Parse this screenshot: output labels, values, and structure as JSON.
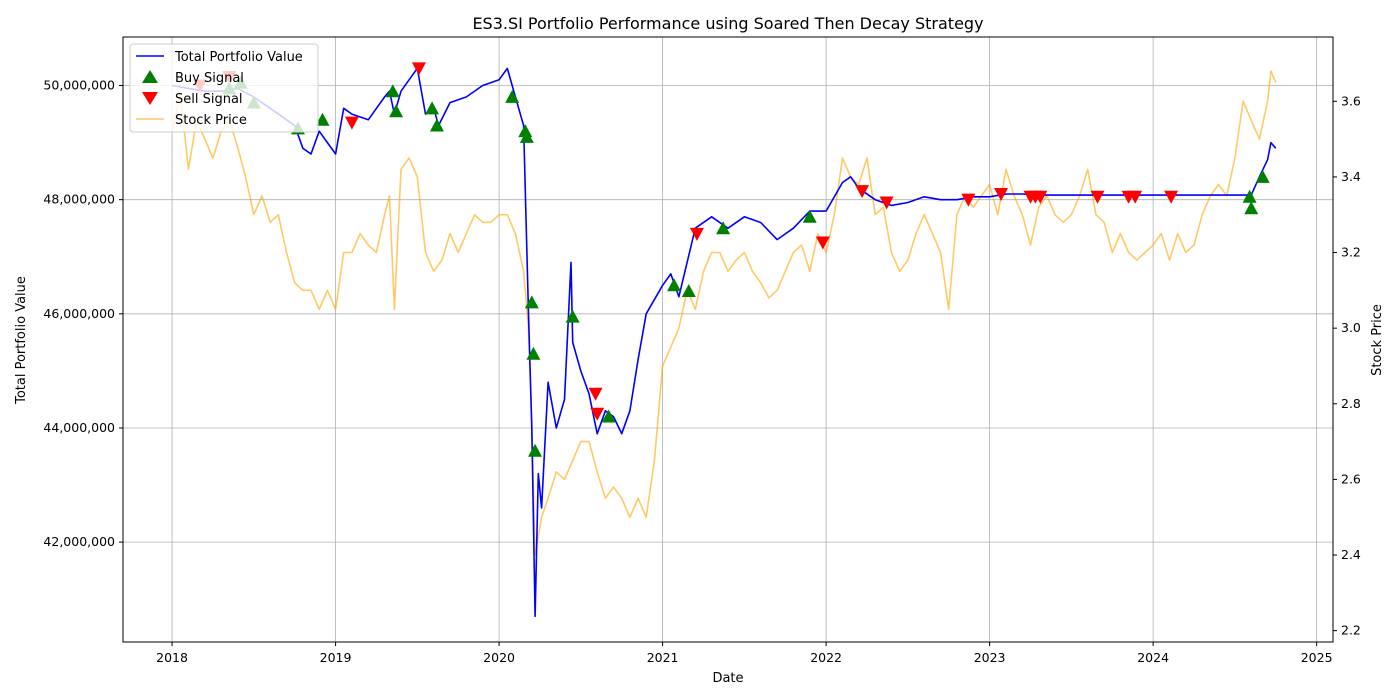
{
  "chart_data": {
    "type": "line",
    "title": "ES3.SI Portfolio Performance using Soared Then Decay Strategy",
    "xlabel": "Date",
    "ylabel": "Total Portfolio Value",
    "y2label": "Stock Price",
    "xlim": [
      2017.7,
      2025.1
    ],
    "ylim": [
      40250000,
      50850000
    ],
    "y2lim": [
      2.17,
      3.77
    ],
    "x_ticks": [
      "2018",
      "2019",
      "2020",
      "2021",
      "2022",
      "2023",
      "2024",
      "2025"
    ],
    "y_ticks": [
      "42,000,000",
      "44,000,000",
      "46,000,000",
      "48,000,000",
      "50,000,000"
    ],
    "y2_ticks": [
      "2.2",
      "2.4",
      "2.6",
      "2.8",
      "3.0",
      "3.2",
      "3.4",
      "3.6"
    ],
    "grid": true,
    "legend": {
      "position": "top-left",
      "entries": [
        "Total Portfolio Value",
        "Buy Signal",
        "Sell Signal",
        "Stock Price"
      ]
    },
    "colors": {
      "portfolio": "#0000ff",
      "price": "#ffa500",
      "buy": "#008000",
      "sell": "#ff0000"
    },
    "series": [
      {
        "name": "Total Portfolio Value",
        "axis": "left",
        "x": [
          2018.0,
          2018.1,
          2018.2,
          2018.3,
          2018.4,
          2018.5,
          2018.6,
          2018.7,
          2018.75,
          2018.8,
          2018.85,
          2018.9,
          2018.95,
          2019.0,
          2019.05,
          2019.1,
          2019.2,
          2019.3,
          2019.33,
          2019.36,
          2019.4,
          2019.45,
          2019.5,
          2019.55,
          2019.6,
          2019.63,
          2019.7,
          2019.8,
          2019.9,
          2020.0,
          2020.05,
          2020.1,
          2020.15,
          2020.18,
          2020.2,
          2020.22,
          2020.24,
          2020.26,
          2020.3,
          2020.35,
          2020.4,
          2020.44,
          2020.45,
          2020.5,
          2020.55,
          2020.6,
          2020.65,
          2020.7,
          2020.75,
          2020.8,
          2020.85,
          2020.9,
          2021.0,
          2021.05,
          2021.1,
          2021.2,
          2021.3,
          2021.4,
          2021.5,
          2021.6,
          2021.7,
          2021.8,
          2021.9,
          2022.0,
          2022.1,
          2022.15,
          2022.2,
          2022.3,
          2022.4,
          2022.5,
          2022.6,
          2022.7,
          2022.8,
          2022.9,
          2023.0,
          2023.1,
          2023.2,
          2023.3,
          2023.5,
          2023.7,
          2023.9,
          2024.1,
          2024.3,
          2024.5,
          2024.6,
          2024.65,
          2024.7,
          2024.72,
          2024.75
        ],
        "values": [
          50000000,
          49950000,
          49900000,
          49900000,
          49950000,
          49800000,
          49600000,
          49400000,
          49300000,
          48900000,
          48800000,
          49200000,
          49000000,
          48800000,
          49600000,
          49500000,
          49400000,
          49800000,
          49900000,
          49500000,
          49900000,
          50100000,
          50300000,
          49500000,
          49600000,
          49300000,
          49700000,
          49800000,
          50000000,
          50100000,
          50300000,
          49800000,
          49300000,
          46000000,
          44000000,
          40700000,
          43200000,
          42600000,
          44800000,
          44000000,
          44500000,
          46900000,
          45500000,
          45000000,
          44600000,
          43900000,
          44300000,
          44200000,
          43900000,
          44300000,
          45200000,
          46000000,
          46500000,
          46700000,
          46300000,
          47500000,
          47700000,
          47500000,
          47700000,
          47600000,
          47300000,
          47500000,
          47800000,
          47800000,
          48300000,
          48400000,
          48200000,
          48000000,
          47900000,
          47950000,
          48050000,
          48000000,
          48000000,
          48050000,
          48050000,
          48100000,
          48100000,
          48080000,
          48080000,
          48080000,
          48080000,
          48080000,
          48080000,
          48080000,
          48080000,
          48400000,
          48700000,
          49000000,
          48900000
        ]
      },
      {
        "name": "Stock Price",
        "axis": "right",
        "x": [
          2018.0,
          2018.05,
          2018.1,
          2018.15,
          2018.2,
          2018.25,
          2018.3,
          2018.35,
          2018.4,
          2018.45,
          2018.5,
          2018.55,
          2018.6,
          2018.65,
          2018.7,
          2018.75,
          2018.8,
          2018.85,
          2018.9,
          2018.95,
          2019.0,
          2019.05,
          2019.1,
          2019.15,
          2019.2,
          2019.25,
          2019.3,
          2019.33,
          2019.36,
          2019.4,
          2019.45,
          2019.5,
          2019.55,
          2019.6,
          2019.65,
          2019.7,
          2019.75,
          2019.8,
          2019.85,
          2019.9,
          2019.95,
          2020.0,
          2020.05,
          2020.1,
          2020.15,
          2020.18,
          2020.2,
          2020.22,
          2020.24,
          2020.26,
          2020.3,
          2020.35,
          2020.4,
          2020.45,
          2020.5,
          2020.55,
          2020.6,
          2020.65,
          2020.7,
          2020.75,
          2020.8,
          2020.85,
          2020.9,
          2020.95,
          2021.0,
          2021.05,
          2021.1,
          2021.15,
          2021.2,
          2021.25,
          2021.3,
          2021.35,
          2021.4,
          2021.45,
          2021.5,
          2021.55,
          2021.6,
          2021.65,
          2021.7,
          2021.75,
          2021.8,
          2021.85,
          2021.9,
          2021.95,
          2022.0,
          2022.05,
          2022.1,
          2022.15,
          2022.2,
          2022.25,
          2022.3,
          2022.35,
          2022.4,
          2022.45,
          2022.5,
          2022.55,
          2022.6,
          2022.65,
          2022.7,
          2022.75,
          2022.8,
          2022.85,
          2022.9,
          2022.95,
          2023.0,
          2023.05,
          2023.1,
          2023.15,
          2023.2,
          2023.25,
          2023.3,
          2023.35,
          2023.4,
          2023.45,
          2023.5,
          2023.55,
          2023.6,
          2023.65,
          2023.7,
          2023.75,
          2023.8,
          2023.85,
          2023.9,
          2023.95,
          2024.0,
          2024.05,
          2024.1,
          2024.15,
          2024.2,
          2024.25,
          2024.3,
          2024.35,
          2024.4,
          2024.45,
          2024.5,
          2024.55,
          2024.6,
          2024.65,
          2024.7,
          2024.72,
          2024.75
        ],
        "values": [
          3.52,
          3.62,
          3.42,
          3.55,
          3.5,
          3.45,
          3.52,
          3.55,
          3.48,
          3.4,
          3.3,
          3.35,
          3.28,
          3.3,
          3.2,
          3.12,
          3.1,
          3.1,
          3.05,
          3.1,
          3.05,
          3.2,
          3.2,
          3.25,
          3.22,
          3.2,
          3.3,
          3.35,
          3.05,
          3.42,
          3.45,
          3.4,
          3.2,
          3.15,
          3.18,
          3.25,
          3.2,
          3.25,
          3.3,
          3.28,
          3.28,
          3.3,
          3.3,
          3.25,
          3.15,
          3.0,
          2.75,
          2.4,
          2.45,
          2.5,
          2.55,
          2.62,
          2.6,
          2.65,
          2.7,
          2.7,
          2.62,
          2.55,
          2.58,
          2.55,
          2.5,
          2.55,
          2.5,
          2.65,
          2.9,
          2.95,
          3.0,
          3.1,
          3.05,
          3.15,
          3.2,
          3.2,
          3.15,
          3.18,
          3.2,
          3.15,
          3.12,
          3.08,
          3.1,
          3.15,
          3.2,
          3.22,
          3.15,
          3.25,
          3.2,
          3.3,
          3.45,
          3.4,
          3.38,
          3.45,
          3.3,
          3.32,
          3.2,
          3.15,
          3.18,
          3.25,
          3.3,
          3.25,
          3.2,
          3.05,
          3.3,
          3.35,
          3.32,
          3.35,
          3.38,
          3.3,
          3.42,
          3.35,
          3.3,
          3.22,
          3.32,
          3.35,
          3.3,
          3.28,
          3.3,
          3.35,
          3.42,
          3.3,
          3.28,
          3.2,
          3.25,
          3.2,
          3.18,
          3.2,
          3.22,
          3.25,
          3.18,
          3.25,
          3.2,
          3.22,
          3.3,
          3.35,
          3.38,
          3.35,
          3.45,
          3.6,
          3.55,
          3.5,
          3.6,
          3.68,
          3.65
        ]
      }
    ],
    "buy_signals": {
      "x": [
        2018.35,
        2018.42,
        2018.5,
        2018.77,
        2018.92,
        2019.35,
        2019.37,
        2019.59,
        2019.62,
        2020.08,
        2020.16,
        2020.17,
        2020.2,
        2020.21,
        2020.22,
        2020.45,
        2020.67,
        2021.07,
        2021.16,
        2021.37,
        2021.9,
        2024.59,
        2024.6,
        2024.67
      ],
      "values": [
        49950000,
        50050000,
        49700000,
        49250000,
        49400000,
        49900000,
        49550000,
        49600000,
        49300000,
        49800000,
        49200000,
        49100000,
        46200000,
        45300000,
        43600000,
        45950000,
        44200000,
        46500000,
        46400000,
        47500000,
        47700000,
        48050000,
        47850000,
        48400000
      ]
    },
    "sell_signals": {
      "x": [
        2018.17,
        2018.35,
        2019.1,
        2019.51,
        2020.59,
        2020.6,
        2021.21,
        2021.98,
        2022.22,
        2022.37,
        2022.87,
        2023.07,
        2023.25,
        2023.28,
        2023.31,
        2023.66,
        2023.85,
        2023.89,
        2024.11
      ],
      "values": [
        50000000,
        50150000,
        49350000,
        50300000,
        44600000,
        44250000,
        47400000,
        47250000,
        48150000,
        47950000,
        48000000,
        48100000,
        48050000,
        48050000,
        48050000,
        48050000,
        48050000,
        48050000,
        48050000
      ]
    }
  }
}
